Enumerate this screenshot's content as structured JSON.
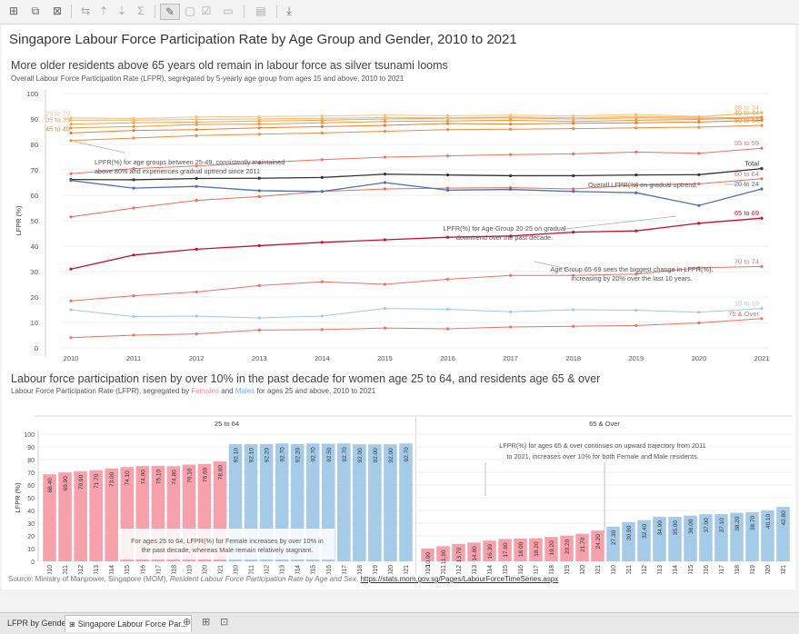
{
  "toolbar": {
    "icons": [
      "show-me-icon",
      "duplicate-icon",
      "clear-sheet-icon",
      "swap-icon",
      "sort-asc-icon",
      "sort-desc-icon",
      "totals-icon",
      "highlight-icon",
      "group-icon",
      "labels-icon",
      "fix-axes-icon",
      "fit-icon",
      "presentation-icon",
      "download-icon"
    ]
  },
  "dashboard": {
    "title": "Singapore Labour Force Participation Rate by Age Group and Gender, 2010 to 2021",
    "section1": {
      "title": "More older residents above 65 years old remain in labour force as silver tsunami looms",
      "subtitle": "Overall Labour Force Participation Rate (LFPR), segregated by 5-yearly age group from ages 15 and above, 2010 to 2021"
    },
    "section2": {
      "title": "Labour force participation risen by over 10% in the past decade for women age 25 to 64, and residents age 65 & over",
      "subtitle_a": "Labour Force Participation Rate (LFPR), segregated by ",
      "subtitle_females": "Females",
      "subtitle_and": " and ",
      "subtitle_males": "Males",
      "subtitle_b": " for ages 25 and above, 2010 to 2021"
    },
    "source_text": "Source: Ministry of Manpower, Singapore (MOM), ",
    "source_title": "Resident Labour Force Participation Rate by Age and Sex",
    "source_sep": ". ",
    "source_link": "https://stats.mom.gov.sg/Pages/LabourForceTimeSeries.aspx"
  },
  "tabs": [
    {
      "label": "LFPR by Gender",
      "active": false
    },
    {
      "label": "Singapore Labour Force Par...",
      "active": true
    }
  ],
  "colors": {
    "total": "#333333",
    "age_65_69": "#c8102e",
    "age_20_24": "#4a72b8",
    "age_15_19": "#9ecae9",
    "orange_dark": "#e8802a",
    "orange_mid": "#f4a04a",
    "orange_light": "#f8c285",
    "salmon": "#f07060",
    "female": "#f7a1ad",
    "male": "#a5cbe8"
  },
  "chart_data": [
    {
      "type": "line",
      "x": [
        2010,
        2011,
        2012,
        2013,
        2014,
        2015,
        2016,
        2017,
        2018,
        2019,
        2020,
        2021
      ],
      "ylabel": "LFPR (%)",
      "ylim": [
        0,
        100
      ],
      "yticks": [
        0,
        10,
        20,
        30,
        40,
        50,
        60,
        70,
        80,
        90,
        100
      ],
      "grid": true,
      "series": [
        {
          "name": "25 to 29",
          "color": "#f8c285",
          "label_side": "left",
          "values": [
            90.5,
            90.2,
            90.8,
            91.0,
            91.2,
            91.5,
            91.3,
            91.5,
            91.2,
            91.8,
            91.0,
            92.5
          ]
        },
        {
          "name": "35 to 39",
          "color": "#f4a04a",
          "label_side": "left",
          "values": [
            88.0,
            88.5,
            88.8,
            89.2,
            89.5,
            90.0,
            90.3,
            90.5,
            90.0,
            90.5,
            90.3,
            90.8
          ]
        },
        {
          "name": "45 to 49",
          "color": "#e8802a",
          "label_side": "left",
          "values": [
            84.5,
            85.5,
            85.8,
            86.5,
            87.0,
            87.5,
            88.2,
            88.0,
            88.3,
            88.5,
            88.8,
            89.5
          ]
        },
        {
          "name": "30 to 34",
          "color": "#f8b870",
          "label_side": "right",
          "values": [
            89.5,
            89.5,
            89.8,
            90.0,
            90.3,
            90.6,
            90.5,
            90.8,
            90.5,
            91.0,
            90.8,
            92.5
          ]
        },
        {
          "name": "40 to 44",
          "color": "#f29838",
          "label_side": "right",
          "values": [
            86.5,
            87.0,
            87.8,
            88.0,
            88.5,
            89.0,
            89.2,
            89.5,
            89.0,
            89.5,
            89.8,
            90.5
          ]
        },
        {
          "name": "50 to 54",
          "color": "#ee8a3c",
          "label_side": "right",
          "values": [
            81.5,
            82.5,
            83.5,
            84.0,
            84.5,
            85.2,
            85.8,
            86.0,
            86.2,
            86.5,
            86.8,
            87.5
          ]
        },
        {
          "name": "55 to 59",
          "color": "#f07060",
          "label_side": "right",
          "values": [
            68.5,
            70.5,
            71.5,
            72.8,
            74.0,
            75.0,
            75.5,
            76.0,
            76.3,
            77.0,
            76.5,
            78.5
          ]
        },
        {
          "name": "Total",
          "color": "#333333",
          "label_side": "right",
          "values": [
            66.2,
            66.1,
            66.6,
            66.7,
            67.0,
            68.3,
            68.0,
            67.7,
            67.7,
            68.0,
            68.1,
            70.5
          ]
        },
        {
          "name": "60 to 64",
          "color": "#f06a50",
          "label_side": "right",
          "values": [
            51.5,
            55.0,
            58.0,
            59.5,
            61.5,
            62.5,
            62.8,
            63.0,
            62.5,
            64.0,
            64.5,
            66.5
          ]
        },
        {
          "name": "20 to 24",
          "color": "#4a72b8",
          "label_side": "right",
          "values": [
            65.8,
            62.8,
            63.5,
            61.8,
            61.5,
            65.0,
            62.0,
            62.3,
            61.5,
            61.0,
            56.0,
            62.5
          ]
        },
        {
          "name": "65 to 69",
          "color": "#c8102e",
          "label_side": "right",
          "values": [
            31.0,
            36.5,
            38.8,
            40.2,
            41.5,
            42.5,
            43.5,
            44.0,
            45.5,
            46.0,
            49.0,
            51.0
          ]
        },
        {
          "name": "70 to 74",
          "color": "#f07060",
          "label_side": "right",
          "values": [
            18.5,
            20.5,
            22.0,
            24.5,
            26.0,
            25.0,
            27.0,
            28.5,
            28.5,
            29.0,
            31.5,
            32.0
          ]
        },
        {
          "name": "15 to 19",
          "color": "#9ecae9",
          "label_side": "right",
          "values": [
            15.0,
            12.3,
            12.5,
            11.8,
            12.5,
            15.5,
            15.2,
            14.2,
            15.0,
            14.8,
            14.0,
            15.5
          ]
        },
        {
          "name": "75 & Over",
          "color": "#f07060",
          "label_side": "right",
          "values": [
            4.0,
            5.0,
            5.5,
            7.0,
            7.2,
            7.8,
            7.5,
            8.2,
            8.5,
            8.8,
            9.8,
            11.5
          ]
        }
      ],
      "annotations": [
        {
          "text": "LPFR(%) for age groups between 25-49, consistently maintained above 80% and experiences gradual uptrend since 2011."
        },
        {
          "text": "Overall LFPR(%) on gradual uptrend."
        },
        {
          "text": "LPFR(%) for Age-Group 20-25 on gradual downtrend over the past decade."
        },
        {
          "text": "Age Group 65-69 sees the biggest change in LFPR(%), increasing by 20% over the last 10 years."
        }
      ]
    },
    {
      "type": "bar",
      "ylabel": "LFPR (%)",
      "ylim": [
        0,
        100
      ],
      "yticks": [
        0,
        10,
        20,
        30,
        40,
        50,
        60,
        70,
        80,
        90,
        100
      ],
      "panels": [
        {
          "name": "25 to 64",
          "series": [
            {
              "name": "Females",
              "color": "#f7a1ad",
              "categories": [
                "2010",
                "2011",
                "2012",
                "2013",
                "2014",
                "2015",
                "2016",
                "2017",
                "2018",
                "2019",
                "2020",
                "2021"
              ],
              "values": [
                68.4,
                69.9,
                70.9,
                71.7,
                73.0,
                74.1,
                74.9,
                75.1,
                74.8,
                76.1,
                76.6,
                78.6
              ]
            },
            {
              "name": "Males",
              "color": "#a5cbe8",
              "categories": [
                "2010",
                "2011",
                "2012",
                "2013",
                "2014",
                "2015",
                "2016",
                "2017",
                "2018",
                "2019",
                "2020",
                "2021"
              ],
              "values": [
                92.1,
                92.1,
                92.2,
                92.7,
                92.2,
                92.7,
                92.5,
                92.7,
                92.0,
                92.0,
                92.0,
                92.7
              ]
            }
          ]
        },
        {
          "name": "65 & Over",
          "series": [
            {
              "name": "Females",
              "color": "#f7a1ad",
              "categories": [
                "2010",
                "2011",
                "2012",
                "2013",
                "2014",
                "2015",
                "2016",
                "2017",
                "2018",
                "2019",
                "2020",
                "2021"
              ],
              "values": [
                10.0,
                11.9,
                13.7,
                14.8,
                16.3,
                17.6,
                18.0,
                18.2,
                19.2,
                20.2,
                21.7,
                24.2
              ]
            },
            {
              "name": "Males",
              "color": "#a5cbe8",
              "categories": [
                "2010",
                "2011",
                "2012",
                "2013",
                "2014",
                "2015",
                "2016",
                "2017",
                "2018",
                "2019",
                "2020",
                "2021"
              ],
              "values": [
                27.3,
                30.9,
                32.4,
                34.9,
                35.0,
                36.0,
                37.0,
                37.1,
                38.2,
                38.7,
                40.1,
                42.8
              ]
            }
          ]
        }
      ],
      "annotations": [
        {
          "text": "For ages 25 to 64, LFPR(%) for Female increases by over 10% in the past decade, whereas Male remain relatively stagnant."
        },
        {
          "text": "LFPR(%) for ages 65 & over continues on upward trajectory from 2011 to 2021, increases over 10% for both Female and Male residents."
        }
      ]
    }
  ]
}
